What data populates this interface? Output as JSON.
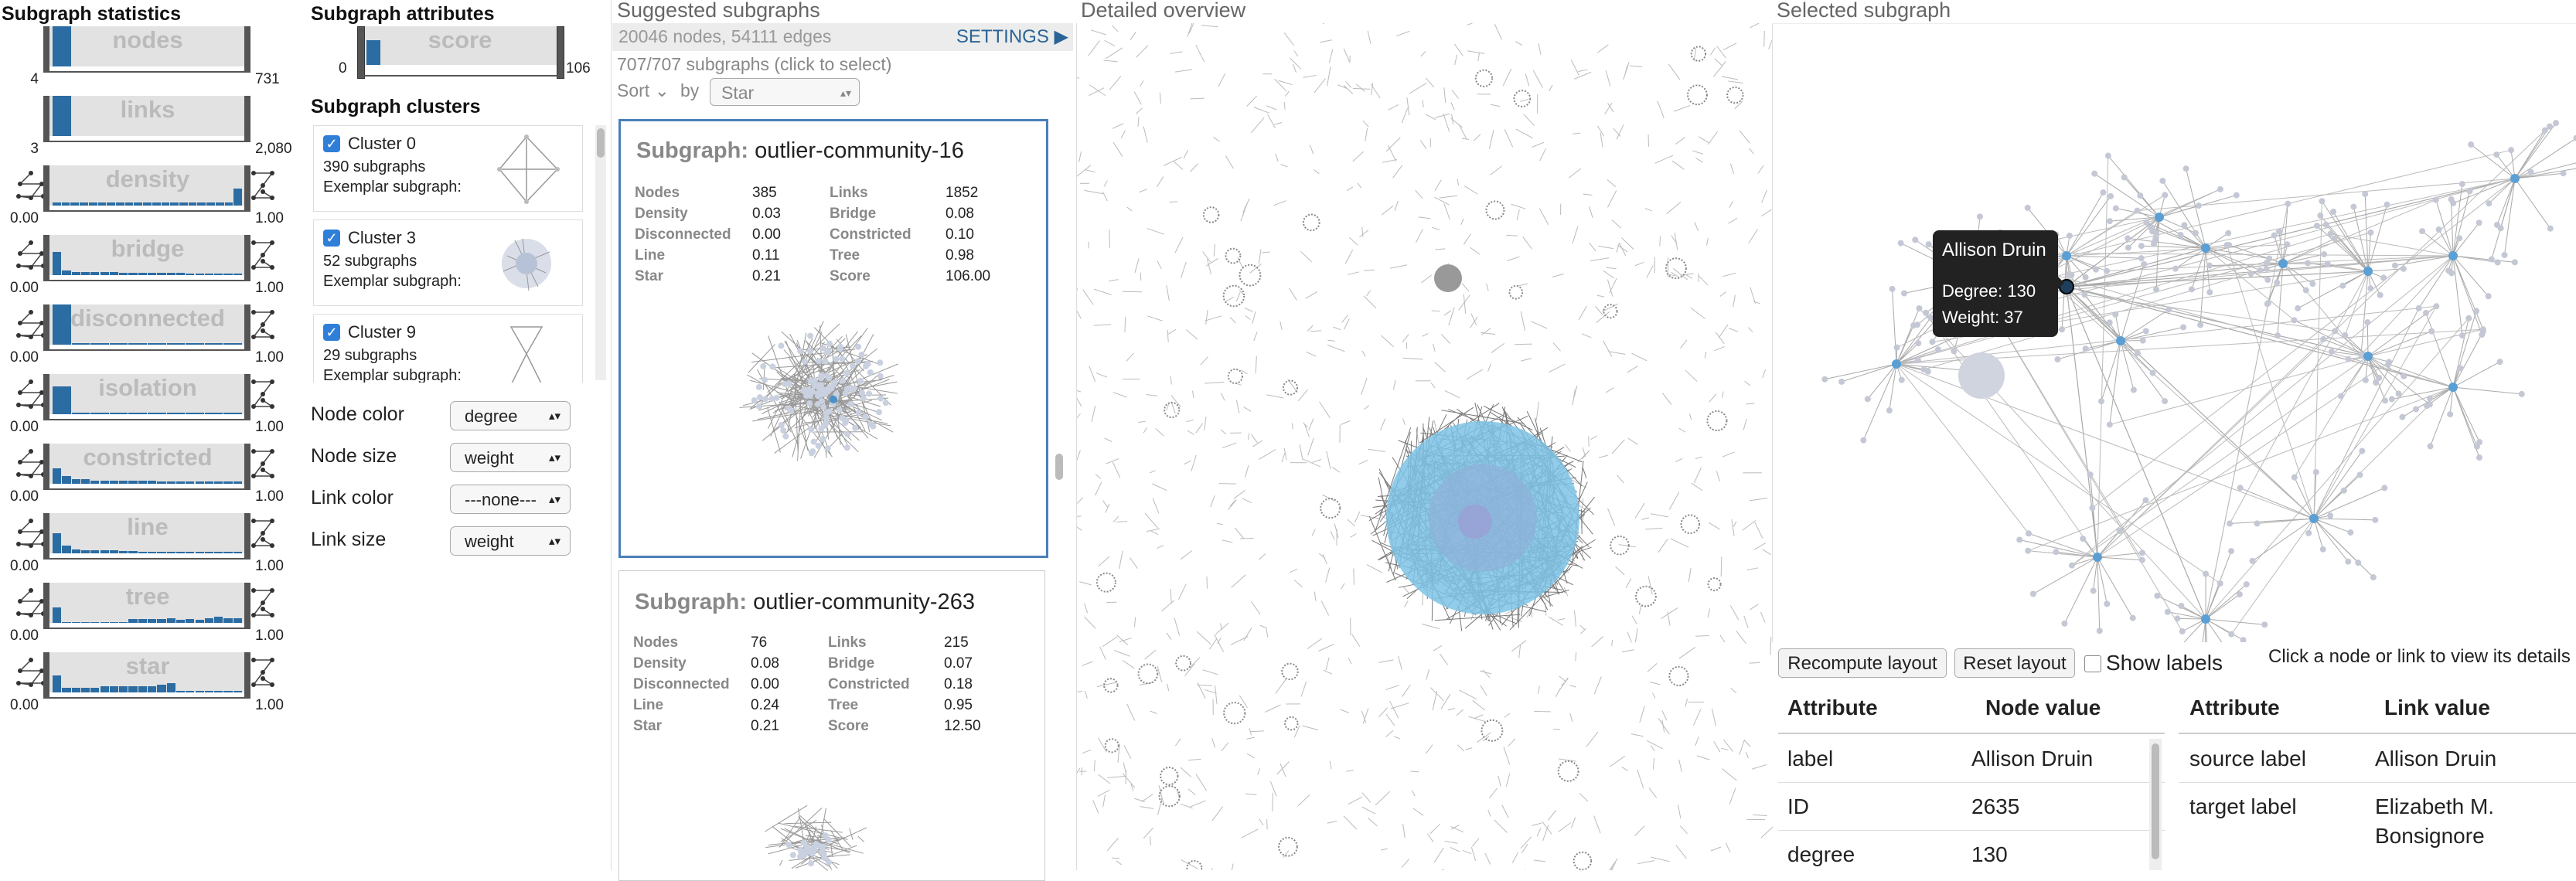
{
  "stats": {
    "title": "Subgraph statistics",
    "rows": [
      {
        "label": "nodes",
        "min": "4",
        "max": "731"
      },
      {
        "label": "links",
        "min": "3",
        "max": "2,080"
      },
      {
        "label": "density",
        "min": "0.00",
        "max": "1.00"
      },
      {
        "label": "bridge",
        "min": "0.00",
        "max": "1.00"
      },
      {
        "label": "disconnected",
        "min": "0.00",
        "max": "1.00"
      },
      {
        "label": "isolation",
        "min": "0.00",
        "max": "1.00"
      },
      {
        "label": "constricted",
        "min": "0.00",
        "max": "1.00"
      },
      {
        "label": "line",
        "min": "0.00",
        "max": "1.00"
      },
      {
        "label": "tree",
        "min": "0.00",
        "max": "1.00"
      },
      {
        "label": "star",
        "min": "0.00",
        "max": "1.00"
      }
    ]
  },
  "attributes": {
    "title": "Subgraph attributes",
    "score": {
      "label": "score",
      "min": "0",
      "max": "106"
    }
  },
  "clusters": {
    "title": "Subgraph clusters",
    "items": [
      {
        "name": "Cluster 0",
        "count": "390 subgraphs",
        "exemplar": "Exemplar subgraph:"
      },
      {
        "name": "Cluster 3",
        "count": "52 subgraphs",
        "exemplar": "Exemplar subgraph:"
      },
      {
        "name": "Cluster 9",
        "count": "29 subgraphs",
        "exemplar": "Exemplar subgraph:"
      }
    ],
    "checkmark": "✓"
  },
  "controls": {
    "node_color": {
      "label": "Node color",
      "value": "degree"
    },
    "node_size": {
      "label": "Node size",
      "value": "weight"
    },
    "link_color": {
      "label": "Link color",
      "value": "---none---"
    },
    "link_size": {
      "label": "Link size",
      "value": "weight"
    }
  },
  "suggested": {
    "title": "Suggested subgraphs",
    "summary": "20046 nodes, 54111 edges",
    "settings": "SETTINGS",
    "count_text": "707/707 subgraphs (click to select)",
    "sort_label": "Sort",
    "by_label": "by",
    "sort_value": "Star",
    "cards": [
      {
        "prefix": "Subgraph:",
        "name": "outlier-community-16",
        "left": [
          [
            "Nodes",
            "385"
          ],
          [
            "Density",
            "0.03"
          ],
          [
            "Disconnected",
            "0.00"
          ],
          [
            "Line",
            "0.11"
          ],
          [
            "Star",
            "0.21"
          ]
        ],
        "right": [
          [
            "Links",
            "1852"
          ],
          [
            "Bridge",
            "0.08"
          ],
          [
            "Constricted",
            "0.10"
          ],
          [
            "Tree",
            "0.98"
          ],
          [
            "Score",
            "106.00"
          ]
        ]
      },
      {
        "prefix": "Subgraph:",
        "name": "outlier-community-263",
        "left": [
          [
            "Nodes",
            "76"
          ],
          [
            "Density",
            "0.08"
          ],
          [
            "Disconnected",
            "0.00"
          ],
          [
            "Line",
            "0.24"
          ],
          [
            "Star",
            "0.21"
          ]
        ],
        "right": [
          [
            "Links",
            "215"
          ],
          [
            "Bridge",
            "0.07"
          ],
          [
            "Constricted",
            "0.18"
          ],
          [
            "Tree",
            "0.95"
          ],
          [
            "Score",
            "12.50"
          ]
        ]
      }
    ]
  },
  "overview": {
    "title": "Detailed overview"
  },
  "selected": {
    "title": "Selected subgraph",
    "tooltip": {
      "name": "Allison Druin",
      "degree": "Degree: 130",
      "weight": "Weight: 37"
    },
    "recompute": "Recompute layout",
    "reset": "Reset layout",
    "show_labels": "Show labels",
    "hint": "Click a node or link to view its details",
    "node_table": {
      "headers": [
        "Attribute",
        "Node value"
      ],
      "rows": [
        [
          "label",
          "Allison Druin"
        ],
        [
          "ID",
          "2635"
        ],
        [
          "degree",
          "130"
        ]
      ]
    },
    "link_table": {
      "headers": [
        "Attribute",
        "Link value"
      ],
      "rows": [
        [
          "source label",
          "Allison Druin"
        ],
        [
          "target label",
          "Elizabeth M."
        ],
        [
          "",
          "Bonsignore"
        ]
      ]
    }
  },
  "colors": {
    "accent": "#2a6496",
    "bar": "#2b6ca3",
    "check": "#2f7fd8",
    "node_blue": "#6fb6e0"
  }
}
